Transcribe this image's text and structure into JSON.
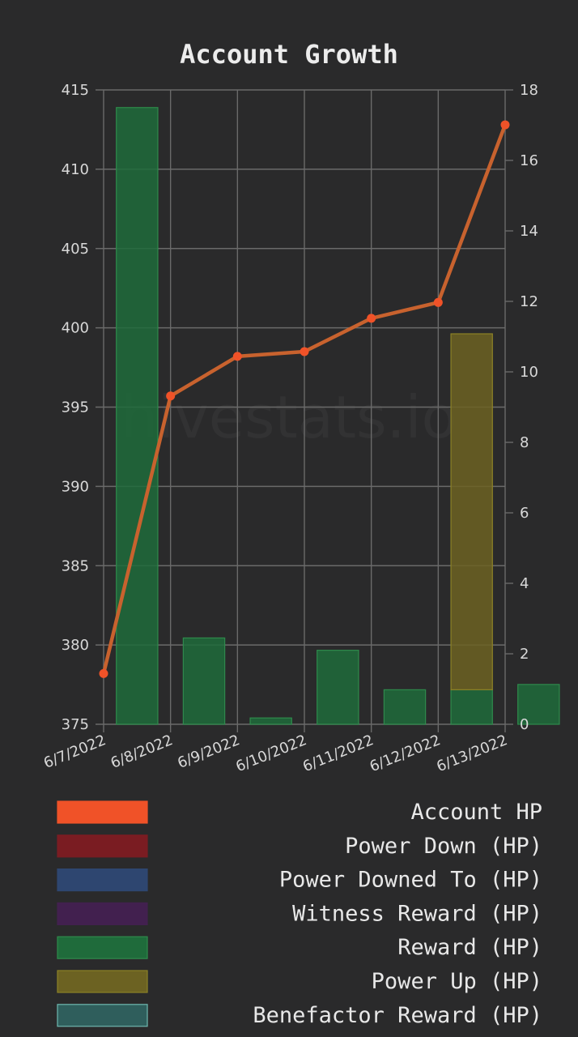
{
  "chart_data": {
    "type": "bar",
    "title": "Account Growth",
    "watermark": "hivestats.io",
    "categories": [
      "6/7/2022",
      "6/8/2022",
      "6/9/2022",
      "6/10/2022",
      "6/11/2022",
      "6/12/2022",
      "6/13/2022"
    ],
    "y_left": {
      "min": 375,
      "max": 415,
      "ticks": [
        375,
        380,
        385,
        390,
        395,
        400,
        405,
        410,
        415
      ]
    },
    "y_right": {
      "min": 0,
      "max": 18,
      "ticks": [
        0,
        2,
        4,
        6,
        8,
        10,
        12,
        14,
        16,
        18
      ]
    },
    "grid": true,
    "legend_position": "bottom",
    "series": [
      {
        "name": "Account HP",
        "type": "line",
        "axis": "left",
        "values": [
          378.2,
          395.7,
          398.2,
          398.5,
          400.6,
          401.6,
          412.8
        ]
      },
      {
        "name": "Power Down (HP)",
        "type": "bar",
        "axis": "right",
        "values": [
          0,
          0,
          0,
          0,
          0,
          0,
          0
        ]
      },
      {
        "name": "Power Downed To (HP)",
        "type": "bar",
        "axis": "right",
        "values": [
          0,
          0,
          0,
          0,
          0,
          0,
          0
        ]
      },
      {
        "name": "Witness Reward (HP)",
        "type": "bar",
        "axis": "right",
        "values": [
          0,
          0,
          0,
          0,
          0,
          0,
          0
        ]
      },
      {
        "name": "Reward (HP)",
        "type": "bar",
        "axis": "right",
        "values": [
          17.5,
          2.45,
          0.18,
          2.1,
          0.98,
          0.98,
          1.13
        ]
      },
      {
        "name": "Power Up (HP)",
        "type": "bar",
        "axis": "right",
        "values": [
          0,
          0,
          0,
          0,
          0,
          10.1,
          0
        ]
      },
      {
        "name": "Benefactor Reward (HP)",
        "type": "bar",
        "axis": "right",
        "values": [
          0,
          0,
          0,
          0,
          0,
          0,
          0
        ]
      }
    ]
  },
  "colors": {
    "Account HP": "#f05228",
    "Account HP line": "#c8622e",
    "Power Down (HP)": "#7a1c22",
    "Power Downed To (HP)": "#2e4670",
    "Witness Reward (HP)": "#42204f",
    "Reward (HP)": "#1f6b3b",
    "Reward (HP) border": "#2f8a4c",
    "Power Up (HP)": "#6c6222",
    "Power Up (HP) border": "#8c8226",
    "Benefactor Reward (HP)": "#2f5e5c",
    "Benefactor Reward (HP) border": "#6fb8b0"
  }
}
